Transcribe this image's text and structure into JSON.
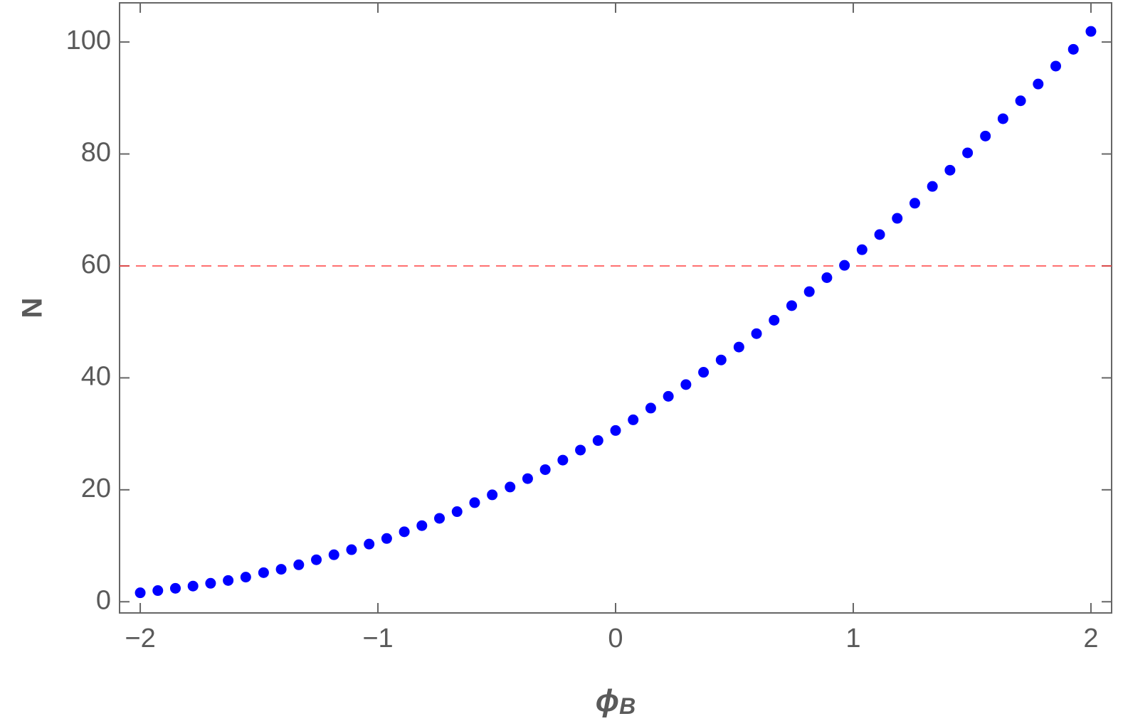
{
  "chart_data": {
    "type": "scatter",
    "xlabel": [
      "ϕ",
      "B"
    ],
    "ylabel": "N",
    "x": [
      -2,
      -1.926,
      -1.852,
      -1.778,
      -1.704,
      -1.63,
      -1.556,
      -1.481,
      -1.407,
      -1.333,
      -1.259,
      -1.185,
      -1.111,
      -1.037,
      -0.963,
      -0.889,
      -0.815,
      -0.741,
      -0.667,
      -0.593,
      -0.519,
      -0.444,
      -0.37,
      -0.296,
      -0.222,
      -0.148,
      -0.074,
      0,
      0.074,
      0.148,
      0.222,
      0.296,
      0.37,
      0.444,
      0.519,
      0.593,
      0.667,
      0.741,
      0.815,
      0.889,
      0.963,
      1.037,
      1.111,
      1.185,
      1.259,
      1.333,
      1.407,
      1.481,
      1.556,
      1.63,
      1.704,
      1.778,
      1.852,
      1.926,
      2
    ],
    "series": [
      {
        "color": "#0000ff",
        "values": [
          1.6,
          2.0,
          2.4,
          2.8,
          3.3,
          3.8,
          4.4,
          5.2,
          5.8,
          6.6,
          7.5,
          8.4,
          9.3,
          10.3,
          11.3,
          12.5,
          13.6,
          14.9,
          16.1,
          17.7,
          19.1,
          20.5,
          22.0,
          23.6,
          25.3,
          27.1,
          28.8,
          30.6,
          32.5,
          34.6,
          36.7,
          38.8,
          41.0,
          43.2,
          45.5,
          47.9,
          50.3,
          52.9,
          55.4,
          57.9,
          60.1,
          62.9,
          65.6,
          68.5,
          71.2,
          74.2,
          77.1,
          80.2,
          83.2,
          86.3,
          89.5,
          92.5,
          95.7,
          98.7,
          101.9
        ]
      }
    ],
    "hline": {
      "value": 60,
      "color": "#ff4040"
    },
    "xlim": [
      -2.087,
      2.087
    ],
    "ylim": [
      -2,
      107
    ],
    "xticks": [
      {
        "value": -2,
        "label": "−2"
      },
      {
        "value": -1,
        "label": "−1"
      },
      0,
      1,
      2
    ],
    "yticks": [
      0,
      20,
      40,
      60,
      80,
      100
    ]
  }
}
